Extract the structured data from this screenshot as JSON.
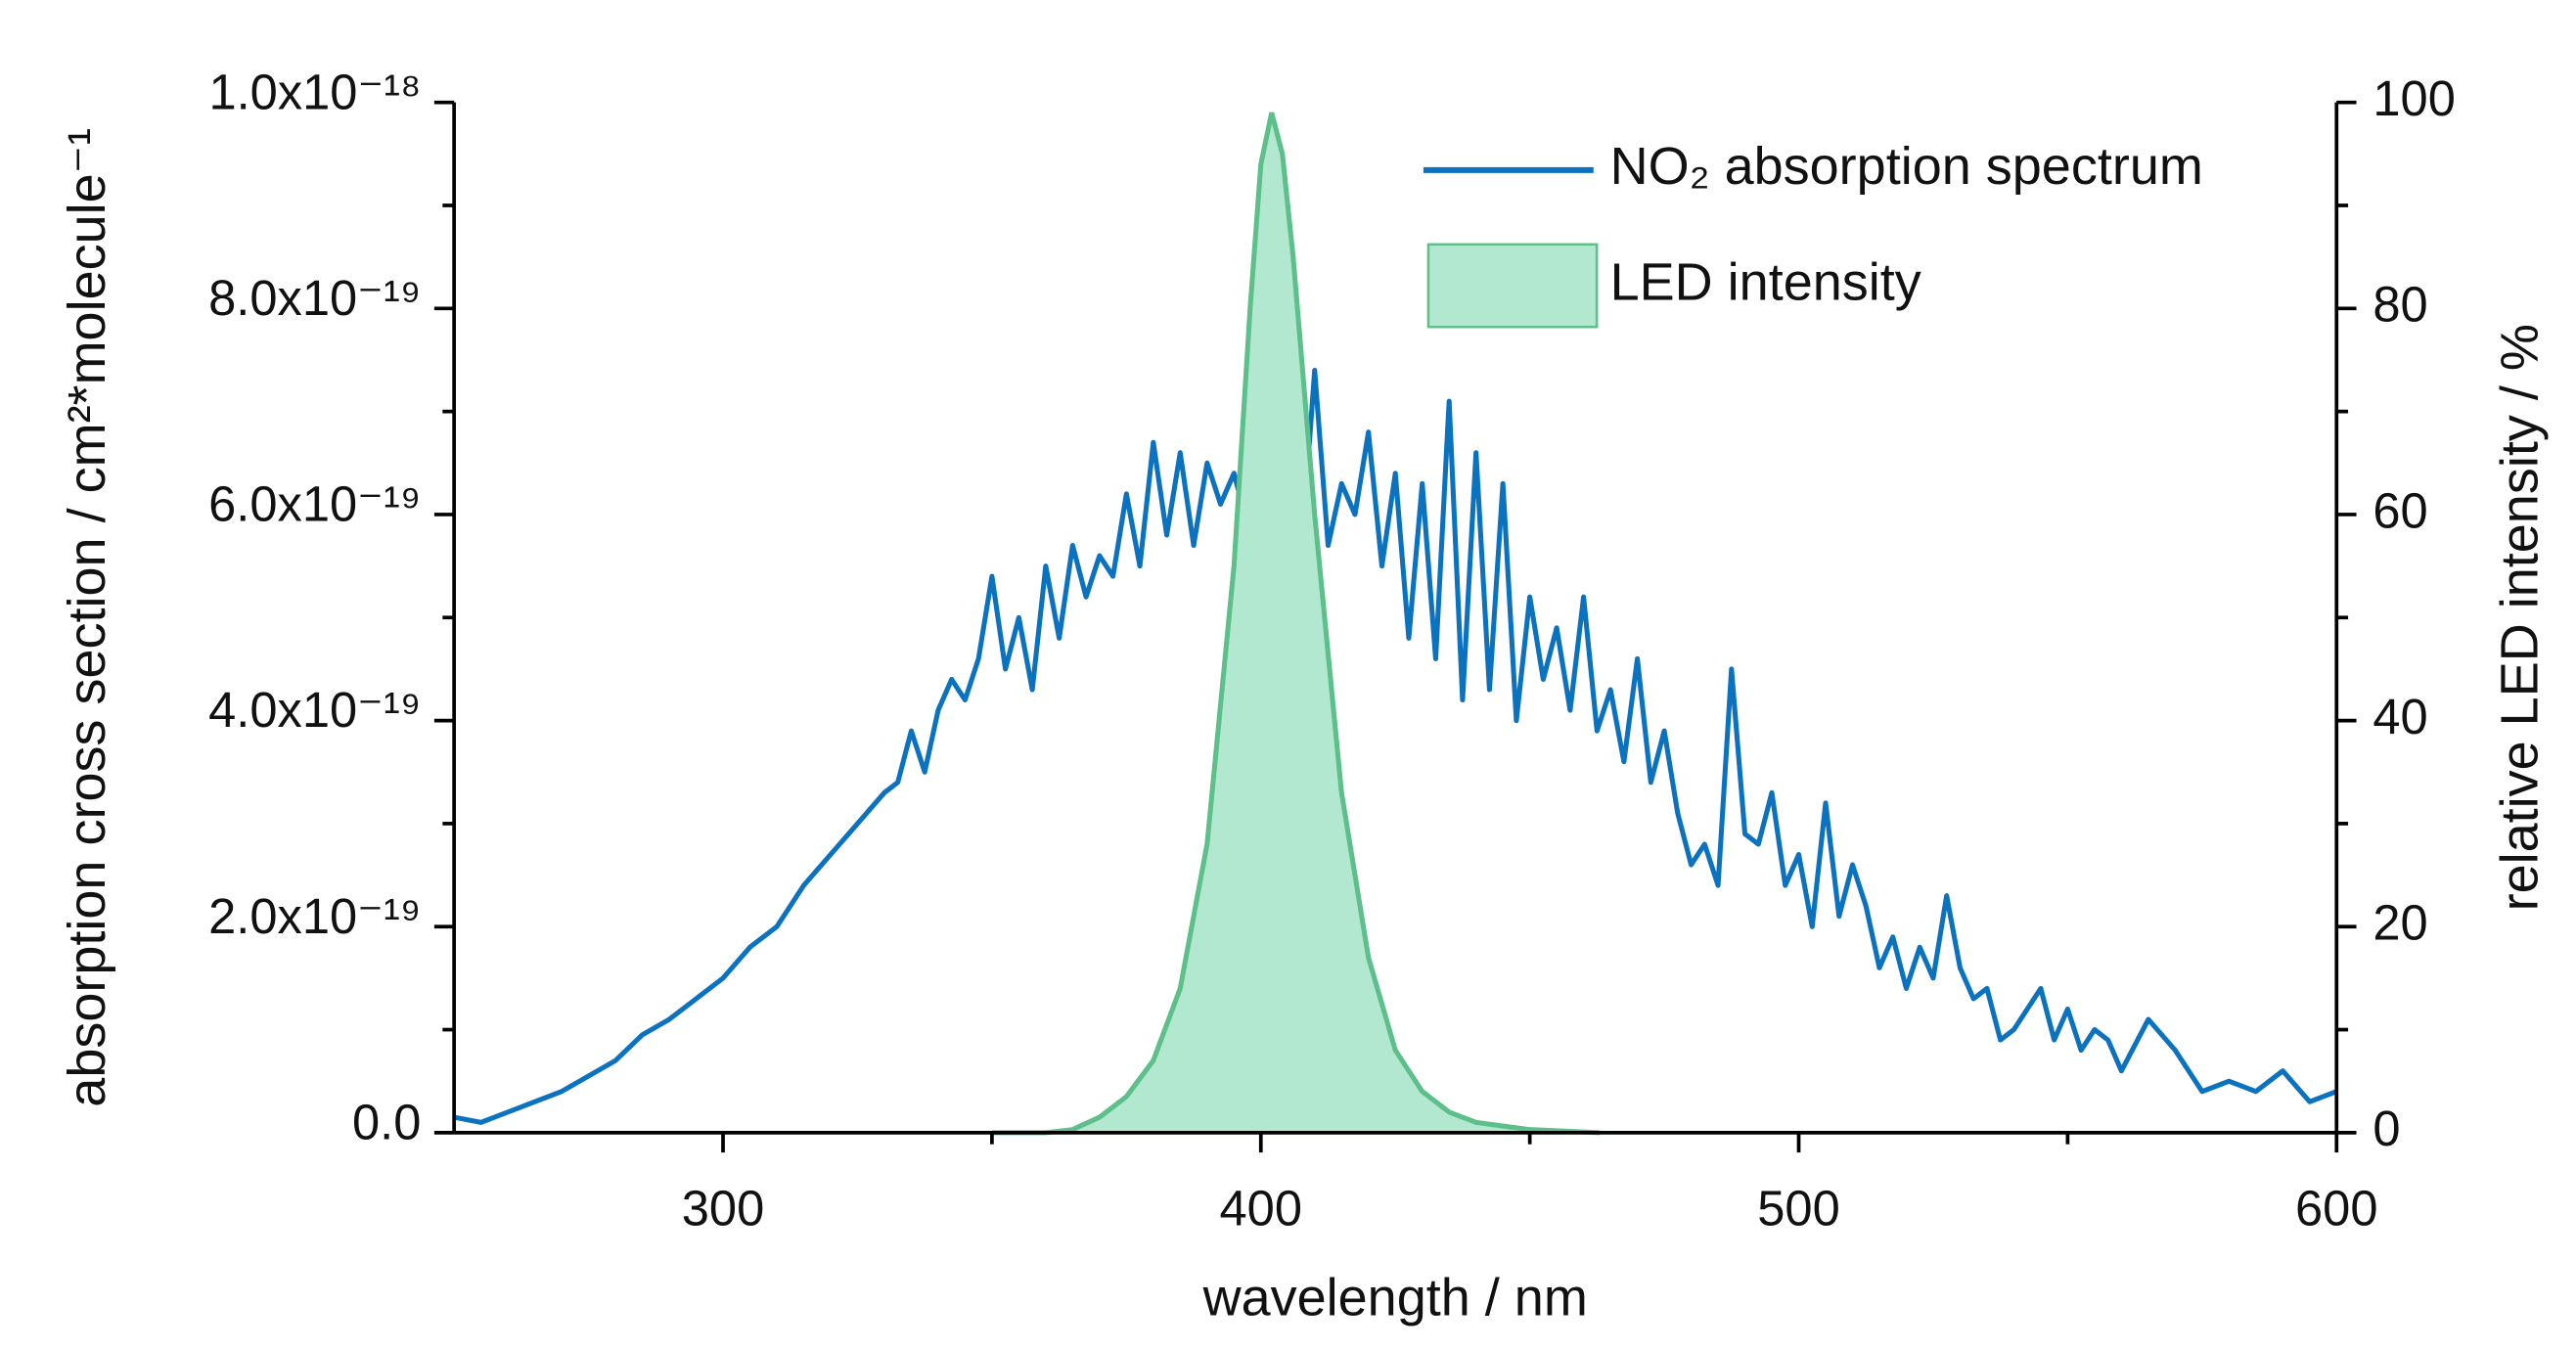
{
  "chart_data": {
    "type": "line",
    "xlabel": "wavelength / nm",
    "ylabel": "absorption cross section / cm²*molecule⁻¹",
    "y2label": "relative LED intensity / %",
    "xlim": [
      250,
      600
    ],
    "xticks": [
      300,
      400,
      500,
      600
    ],
    "xminorticks": [
      350,
      450,
      550
    ],
    "ylim": [
      0,
      1e-18
    ],
    "yticks": [
      {
        "value": 0,
        "label": "0.0"
      },
      {
        "value": 2e-19,
        "label": "2.0x10⁻¹⁹"
      },
      {
        "value": 4e-19,
        "label": "4.0x10⁻¹⁹"
      },
      {
        "value": 6e-19,
        "label": "6.0x10⁻¹⁹"
      },
      {
        "value": 8e-19,
        "label": "8.0x10⁻¹⁹"
      },
      {
        "value": 1e-18,
        "label": "1.0x10⁻¹⁸"
      }
    ],
    "yminorticks": [
      1e-19,
      3e-19,
      5e-19,
      7e-19,
      9e-19
    ],
    "y2lim": [
      0,
      100
    ],
    "y2ticks": [
      0,
      20,
      40,
      60,
      80,
      100
    ],
    "y2minorticks": [
      10,
      30,
      50,
      70,
      90
    ],
    "legend": "upper right",
    "series": [
      {
        "name": "NO₂ absorption spectrum",
        "color": "#0b72c0",
        "kind": "line",
        "x": [
          250,
          255,
          260,
          265,
          270,
          275,
          280,
          285,
          290,
          295,
          300,
          305,
          310,
          315,
          320,
          325,
          330,
          332.5,
          335,
          337.5,
          340,
          342.5,
          345,
          347.5,
          350,
          352.5,
          355,
          357.5,
          360,
          362.5,
          365,
          367.5,
          370,
          372.5,
          375,
          377.5,
          380,
          382.5,
          385,
          387.5,
          390,
          392.5,
          395,
          397.5,
          400,
          402.5,
          405,
          407.5,
          410,
          412.5,
          415,
          417.5,
          420,
          422.5,
          425,
          427.5,
          430,
          432.5,
          435,
          437.5,
          440,
          442.5,
          445,
          447.5,
          450,
          452.5,
          455,
          457.5,
          460,
          462.5,
          465,
          467.5,
          470,
          472.5,
          475,
          477.5,
          480,
          482.5,
          485,
          487.5,
          490,
          492.5,
          495,
          497.5,
          500,
          502.5,
          505,
          507.5,
          510,
          512.5,
          515,
          517.5,
          520,
          522.5,
          525,
          527.5,
          530,
          532.5,
          535,
          537.5,
          540,
          542.5,
          545,
          547.5,
          550,
          552.5,
          555,
          557.5,
          560,
          565,
          570,
          575,
          580,
          585,
          590,
          595,
          600
        ],
        "values": [
          1.5e-20,
          1e-20,
          2e-20,
          3e-20,
          4e-20,
          5.5e-20,
          7e-20,
          9.5e-20,
          1.1e-19,
          1.3e-19,
          1.5e-19,
          1.8e-19,
          2e-19,
          2.4e-19,
          2.7e-19,
          3e-19,
          3.3e-19,
          3.4e-19,
          3.9e-19,
          3.5e-19,
          4.1e-19,
          4.4e-19,
          4.2e-19,
          4.6e-19,
          5.4e-19,
          4.5e-19,
          5e-19,
          4.3e-19,
          5.5e-19,
          4.8e-19,
          5.7e-19,
          5.2e-19,
          5.6e-19,
          5.4e-19,
          6.2e-19,
          5.5e-19,
          6.7e-19,
          5.8e-19,
          6.6e-19,
          5.7e-19,
          6.5e-19,
          6.1e-19,
          6.4e-19,
          5.9e-19,
          7e-19,
          5.8e-19,
          6.6e-19,
          5.6e-19,
          7.4e-19,
          5.7e-19,
          6.3e-19,
          6e-19,
          6.8e-19,
          5.5e-19,
          6.4e-19,
          4.8e-19,
          6.3e-19,
          4.6e-19,
          7.1e-19,
          4.2e-19,
          6.6e-19,
          4.3e-19,
          6.3e-19,
          4e-19,
          5.2e-19,
          4.4e-19,
          4.9e-19,
          4.1e-19,
          5.2e-19,
          3.9e-19,
          4.3e-19,
          3.6e-19,
          4.6e-19,
          3.4e-19,
          3.9e-19,
          3.1e-19,
          2.6e-19,
          2.8e-19,
          2.4e-19,
          4.5e-19,
          2.9e-19,
          2.8e-19,
          3.3e-19,
          2.4e-19,
          2.7e-19,
          2e-19,
          3.2e-19,
          2.1e-19,
          2.6e-19,
          2.2e-19,
          1.6e-19,
          1.9e-19,
          1.4e-19,
          1.8e-19,
          1.5e-19,
          2.3e-19,
          1.6e-19,
          1.3e-19,
          1.4e-19,
          9e-20,
          1e-19,
          1.2e-19,
          1.4e-19,
          9e-20,
          1.2e-19,
          8e-20,
          1e-19,
          9e-20,
          6e-20,
          1.1e-19,
          8e-20,
          4e-20,
          5e-20,
          4e-20,
          6e-20,
          3e-20,
          4e-20
        ]
      },
      {
        "name": "LED intensity",
        "color": "#b3e8d0",
        "edgecolor": "#5dbf8a",
        "kind": "area",
        "axis": "y2",
        "x": [
          350,
          360,
          365,
          370,
          375,
          380,
          385,
          390,
          395,
          398,
          400,
          402,
          404,
          406,
          410,
          415,
          420,
          425,
          430,
          435,
          440,
          450,
          463
        ],
        "values": [
          0,
          0,
          0.3,
          1.5,
          3.5,
          7,
          14,
          28,
          55,
          80,
          94,
          99,
          95,
          85,
          60,
          33,
          17,
          8,
          4,
          2,
          1,
          0.3,
          0
        ]
      }
    ]
  }
}
